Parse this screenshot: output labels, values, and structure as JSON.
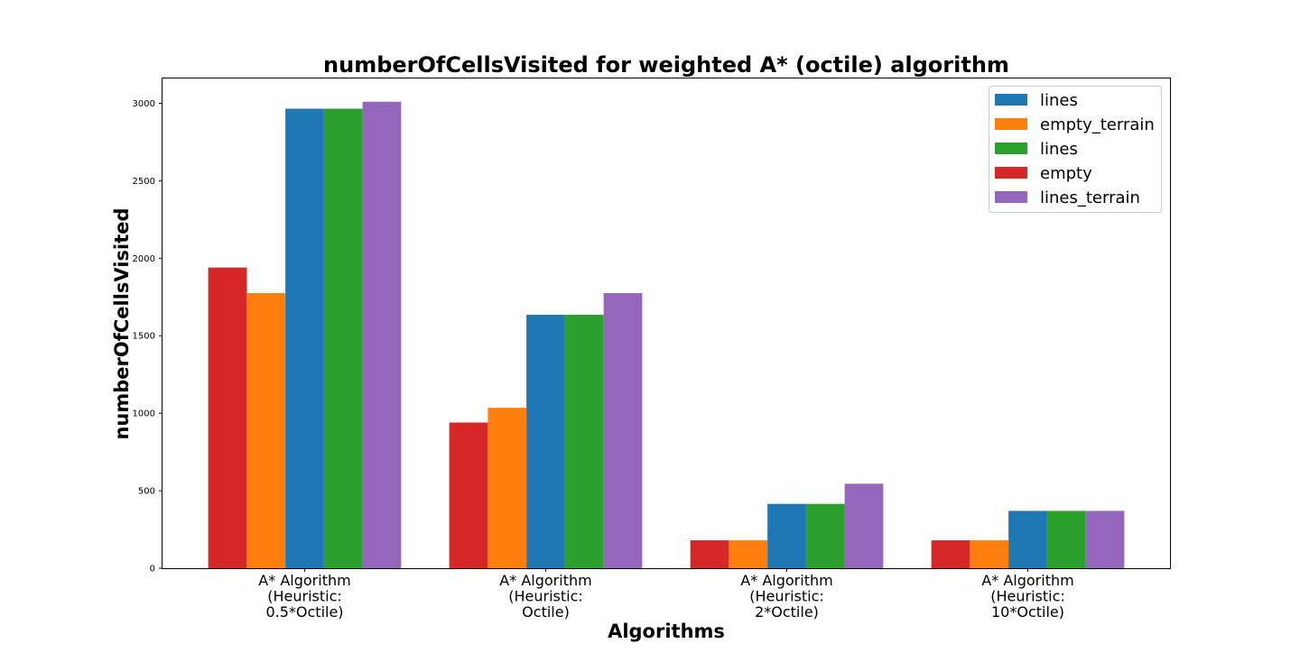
{
  "chart_data": {
    "type": "bar",
    "title": "numberOfCellsVisited for weighted A* (octile) algorithm",
    "xlabel": "Algorithms",
    "ylabel": "numberOfCellsVisited",
    "categories": [
      [
        "A* Algorithm",
        "(Heuristic:",
        "0.5*Octile)"
      ],
      [
        "A* Algorithm",
        "(Heuristic:",
        "Octile)"
      ],
      [
        "A* Algorithm",
        "(Heuristic:",
        "2*Octile)"
      ],
      [
        "A* Algorithm",
        "(Heuristic:",
        "10*Octile)"
      ]
    ],
    "series": [
      {
        "name": "empty",
        "color": "#d62728",
        "values": [
          1940,
          940,
          180,
          180
        ]
      },
      {
        "name": "empty_terrain",
        "color": "#ff7f0e",
        "values": [
          1775,
          1035,
          180,
          180
        ]
      },
      {
        "name": "lines",
        "color": "#1f77b4",
        "values": [
          2965,
          1635,
          415,
          370
        ]
      },
      {
        "name": "lines",
        "color": "#2ca02c",
        "values": [
          2965,
          1635,
          415,
          370
        ]
      },
      {
        "name": "lines_terrain",
        "color": "#9467bd",
        "values": [
          3010,
          1775,
          545,
          370
        ]
      }
    ],
    "legend_order": [
      2,
      1,
      3,
      0,
      4
    ],
    "legend_position": "top-right",
    "ylim": [
      0,
      3160
    ],
    "yticks": [
      0,
      500,
      1000,
      1500,
      2000,
      2500,
      3000
    ],
    "grid": false
  }
}
